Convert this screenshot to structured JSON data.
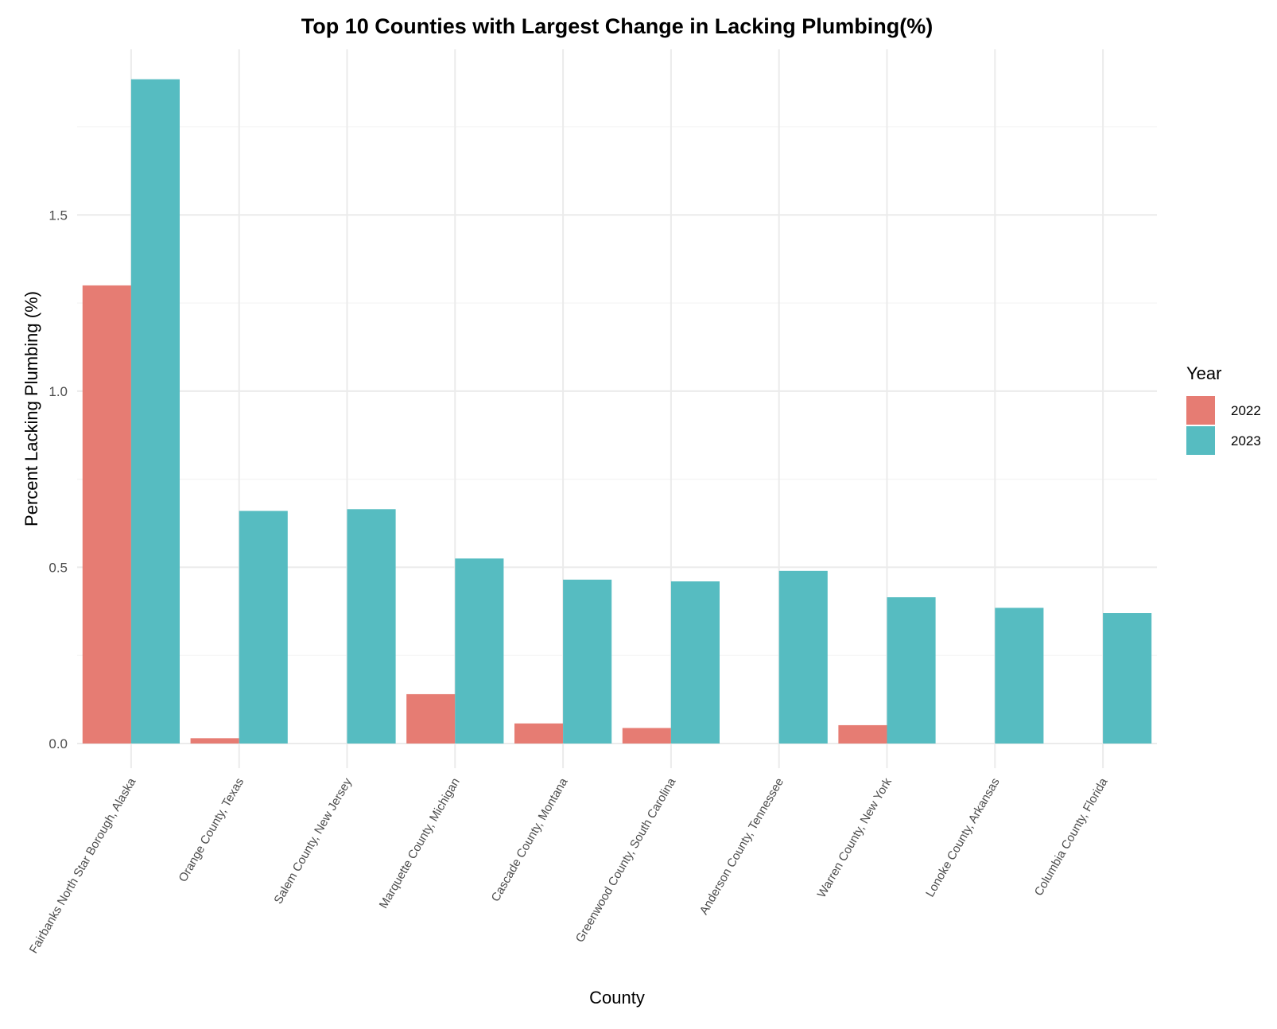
{
  "chart_data": {
    "type": "bar",
    "title": "Top 10 Counties with Largest Change in Lacking Plumbing(%)",
    "xlabel": "County",
    "ylabel": "Percent Lacking Plumbing (%)",
    "ylim": [
      -0.07,
      1.97
    ],
    "yticks": [
      0.0,
      0.5,
      1.0,
      1.5
    ],
    "ytick_labels": [
      "0.0",
      "0.5",
      "1.0",
      "1.5"
    ],
    "grid": true,
    "legend": {
      "title": "Year",
      "position": "right"
    },
    "categories": [
      "Fairbanks North Star Borough, Alaska",
      "Orange County, Texas",
      "Salem County, New Jersey",
      "Marquette County, Michigan",
      "Cascade County, Montana",
      "Greenwood County, South Carolina",
      "Anderson County, Tennessee",
      "Warren County, New York",
      "Lonoke County, Arkansas",
      "Columbia County, Florida"
    ],
    "series": [
      {
        "name": "2022",
        "color": "#E67C73",
        "values": [
          1.3,
          0.015,
          0.0,
          0.14,
          0.057,
          0.044,
          0.0,
          0.052,
          0.0,
          0.0
        ]
      },
      {
        "name": "2023",
        "color": "#56BCC1",
        "values": [
          1.885,
          0.66,
          0.665,
          0.525,
          0.465,
          0.46,
          0.49,
          0.415,
          0.385,
          0.37
        ]
      }
    ]
  }
}
